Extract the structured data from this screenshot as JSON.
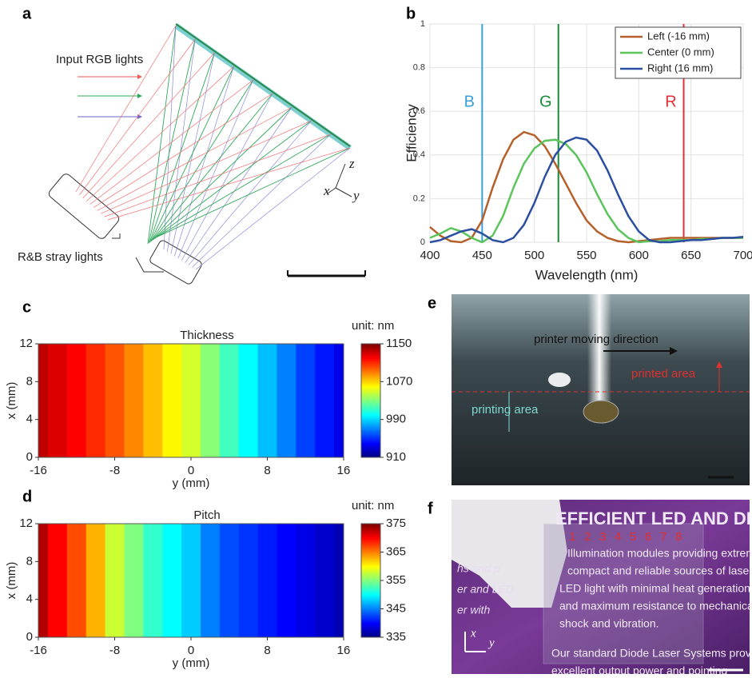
{
  "panel_labels": [
    "a",
    "b",
    "c",
    "d",
    "e",
    "f"
  ],
  "panel_a": {
    "input_label": "Input RGB lights",
    "stray_label": "R&B stray lights",
    "axes": [
      "z",
      "x",
      "y"
    ]
  },
  "chart_data": [
    {
      "type": "line",
      "xlabel": "Wavelength (nm)",
      "ylabel": "Efficiency",
      "x": [
        400,
        410,
        420,
        430,
        440,
        450,
        460,
        470,
        480,
        490,
        500,
        510,
        520,
        530,
        540,
        550,
        560,
        570,
        580,
        590,
        600,
        610,
        620,
        630,
        640,
        650,
        660,
        670,
        680,
        690,
        700
      ],
      "series": [
        {
          "name": "Left (-16 mm)",
          "color": "#b5602a",
          "values": [
            0.07,
            0.03,
            0.005,
            0,
            0.02,
            0.1,
            0.25,
            0.38,
            0.47,
            0.505,
            0.49,
            0.44,
            0.36,
            0.27,
            0.18,
            0.1,
            0.05,
            0.02,
            0.005,
            0,
            0.005,
            0.01,
            0.015,
            0.02,
            0.02,
            0.02,
            0.02,
            0.02,
            0.02,
            0.02,
            0.02
          ]
        },
        {
          "name": "Center (0 mm)",
          "color": "#5cc45c",
          "values": [
            0.02,
            0.04,
            0.065,
            0.05,
            0.02,
            0,
            0.03,
            0.12,
            0.25,
            0.36,
            0.43,
            0.465,
            0.47,
            0.45,
            0.4,
            0.32,
            0.22,
            0.13,
            0.06,
            0.02,
            0,
            0.005,
            0.005,
            0.01,
            0.01,
            0.01,
            0.015,
            0.015,
            0.02,
            0.02,
            0.02
          ]
        },
        {
          "name": "Right (16 mm)",
          "color": "#2b4ea0",
          "values": [
            0,
            0.01,
            0.03,
            0.05,
            0.06,
            0.04,
            0.01,
            0,
            0.02,
            0.08,
            0.18,
            0.3,
            0.4,
            0.46,
            0.48,
            0.47,
            0.42,
            0.33,
            0.22,
            0.12,
            0.05,
            0.01,
            0,
            0,
            0.005,
            0.01,
            0.01,
            0.015,
            0.02,
            0.02,
            0.025
          ]
        }
      ],
      "markers": [
        {
          "label": "B",
          "x": 450,
          "color": "#3a9fd8"
        },
        {
          "label": "G",
          "x": 523,
          "color": "#1a8a3a"
        },
        {
          "label": "R",
          "x": 643,
          "color": "#e0303a"
        }
      ],
      "xlim": [
        400,
        700
      ],
      "xticks": [
        400,
        450,
        500,
        550,
        600,
        650,
        700
      ],
      "ylim": [
        0,
        1
      ],
      "yticks": [
        0,
        0.2,
        0.4,
        0.6,
        0.8,
        1
      ],
      "grid": true,
      "legend": "upper right"
    },
    {
      "type": "heatmap",
      "title": "Thickness",
      "xlabel": "y (mm)",
      "ylabel": "x (mm)",
      "colorbar_label": "unit: nm",
      "x": [
        -16,
        -14,
        -12,
        -10,
        -8,
        -6,
        -4,
        -2,
        0,
        2,
        4,
        6,
        8,
        10,
        12,
        14,
        16
      ],
      "values": [
        1135,
        1128,
        1120,
        1110,
        1100,
        1088,
        1075,
        1062,
        1050,
        1032,
        1015,
        1000,
        985,
        970,
        955,
        945,
        935
      ],
      "xlim": [
        -16,
        16
      ],
      "xticks": [
        -16,
        -8,
        0,
        8,
        16
      ],
      "ylim": [
        0,
        12
      ],
      "yticks": [
        0,
        4,
        8,
        12
      ],
      "clim": [
        910,
        1150
      ],
      "cticks": [
        910,
        990,
        1070,
        1150
      ]
    },
    {
      "type": "heatmap",
      "title": "Pitch",
      "xlabel": "y (mm)",
      "ylabel": "x (mm)",
      "colorbar_label": "unit: nm",
      "x": [
        -16,
        -14,
        -12,
        -10,
        -8,
        -6,
        -4,
        -2,
        0,
        2,
        4,
        6,
        8,
        10,
        12,
        14,
        16
      ],
      "values": [
        373,
        370,
        367,
        363,
        358,
        355,
        352,
        350,
        348,
        345,
        343,
        342,
        341,
        340,
        339,
        338,
        337
      ],
      "xlim": [
        -16,
        16
      ],
      "xticks": [
        -16,
        -8,
        0,
        8,
        16
      ],
      "ylim": [
        0,
        12
      ],
      "yticks": [
        0,
        4,
        8,
        12
      ],
      "clim": [
        335,
        375
      ],
      "cticks": [
        335,
        345,
        355,
        365,
        375
      ]
    }
  ],
  "panel_e": {
    "direction": "printer moving direction",
    "printed": "printed area",
    "printing": "printing area"
  },
  "panel_f": {
    "heading": "EFFICIENT LED AND DIODE L",
    "numbers": [
      "1",
      "2",
      "3",
      "4",
      "5",
      "6",
      "7",
      "8"
    ],
    "lines": [
      "Illumination modules providing extremely",
      "compact and reliable sources of laser and",
      "LED light with minimal heat generation",
      "and maximum resistance to mechanical",
      "shock and vibration.",
      "Our standard Diode Laser Systems provide",
      "excellent output power and pointing"
    ],
    "side": [
      "hs and p",
      "er and LED",
      "er with"
    ],
    "axes": [
      "x",
      "y"
    ]
  }
}
